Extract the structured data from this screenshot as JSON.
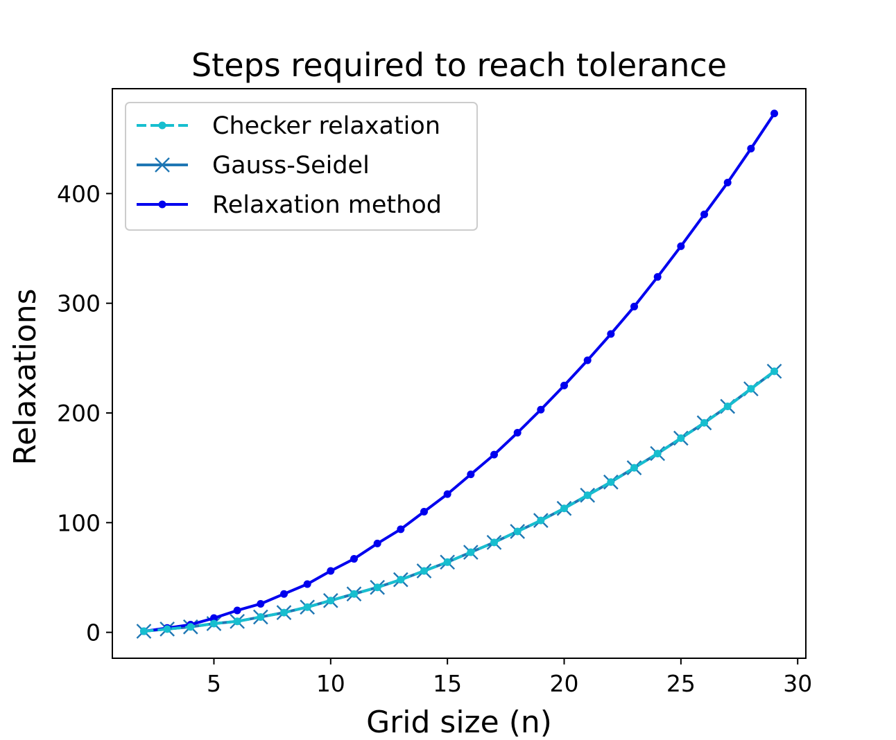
{
  "chart_data": {
    "type": "line",
    "title": "Steps required to reach tolerance",
    "xlabel": "Grid size (n)",
    "ylabel": "Relaxations",
    "xlim": [
      0.65,
      30.35
    ],
    "ylim": [
      -23.6,
      495.6
    ],
    "xticks": [
      5,
      10,
      15,
      20,
      25,
      30
    ],
    "yticks": [
      0,
      100,
      200,
      300,
      400
    ],
    "grid": false,
    "legend_position": "upper left",
    "x": [
      2,
      3,
      4,
      5,
      6,
      7,
      8,
      9,
      10,
      11,
      12,
      13,
      14,
      15,
      16,
      17,
      18,
      19,
      20,
      21,
      22,
      23,
      24,
      25,
      26,
      27,
      28,
      29
    ],
    "series": [
      {
        "name": "Checker relaxation",
        "color": "#17becf",
        "linestyle": "dashed",
        "marker": "dot",
        "values": [
          1,
          3,
          5,
          8,
          10,
          14,
          18,
          23,
          29,
          35,
          41,
          48,
          56,
          64,
          73,
          82,
          92,
          102,
          113,
          125,
          137,
          150,
          163,
          177,
          191,
          206,
          222,
          238
        ]
      },
      {
        "name": "Gauss-Seidel",
        "color": "#1f77b4",
        "linestyle": "solid",
        "marker": "x",
        "values": [
          1,
          3,
          5,
          8,
          10,
          14,
          18,
          23,
          29,
          35,
          41,
          48,
          56,
          64,
          73,
          82,
          92,
          102,
          113,
          125,
          137,
          150,
          163,
          177,
          191,
          206,
          222,
          238
        ]
      },
      {
        "name": "Relaxation method",
        "color": "#0000ee",
        "linestyle": "solid",
        "marker": "dot",
        "values": [
          1,
          4,
          7,
          13,
          20,
          26,
          35,
          44,
          56,
          67,
          81,
          94,
          110,
          126,
          144,
          162,
          182,
          203,
          225,
          248,
          272,
          297,
          324,
          352,
          381,
          410,
          441,
          473
        ]
      }
    ]
  }
}
